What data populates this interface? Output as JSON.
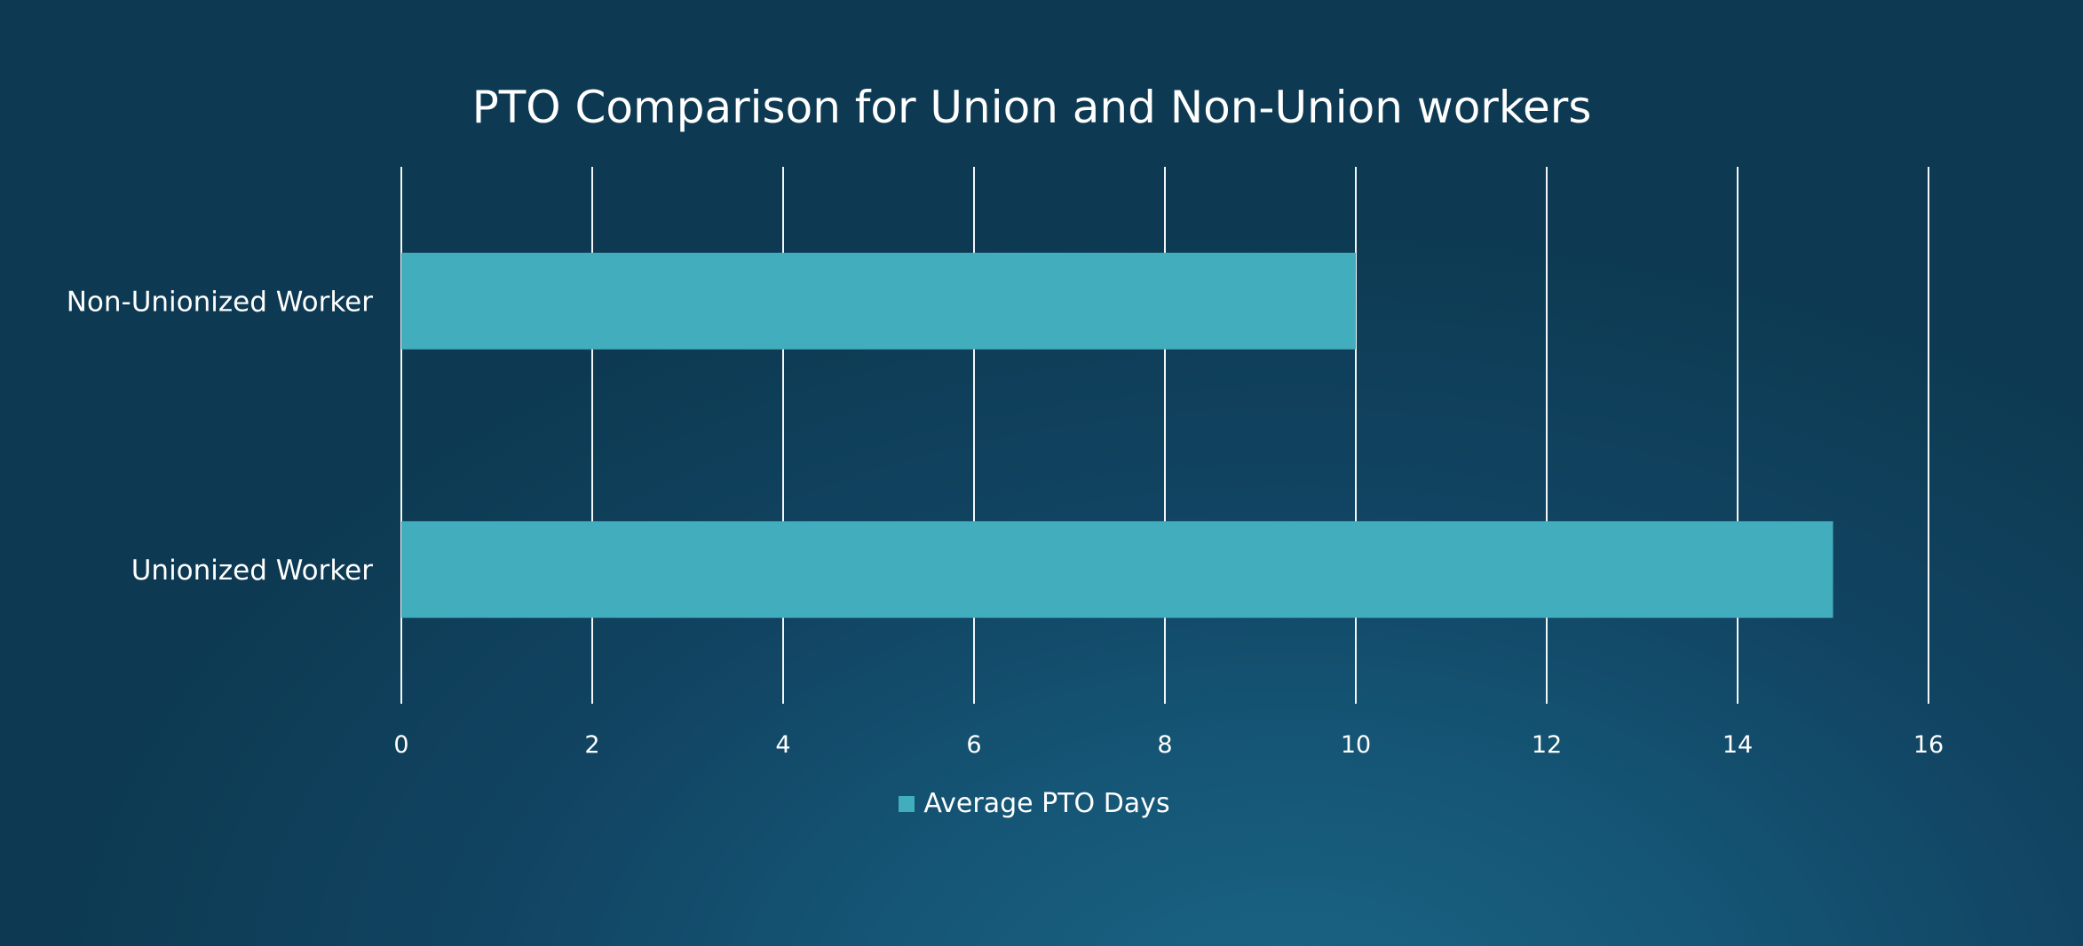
{
  "chart_data": {
    "type": "bar",
    "orientation": "horizontal",
    "title": "PTO Comparison for Union and Non-Union workers",
    "xlabel": "",
    "ylabel": "",
    "categories": [
      "Non-Unionized Worker",
      "Unionized Worker"
    ],
    "series": [
      {
        "name": "Average PTO Days",
        "values": [
          10,
          15
        ],
        "color": "#42adbd"
      }
    ],
    "xlim": [
      0,
      16
    ],
    "x_ticks": [
      "0",
      "2",
      "4",
      "6",
      "8",
      "10",
      "12",
      "14",
      "16"
    ],
    "grid": "vertical",
    "legend": "bottom-center"
  }
}
